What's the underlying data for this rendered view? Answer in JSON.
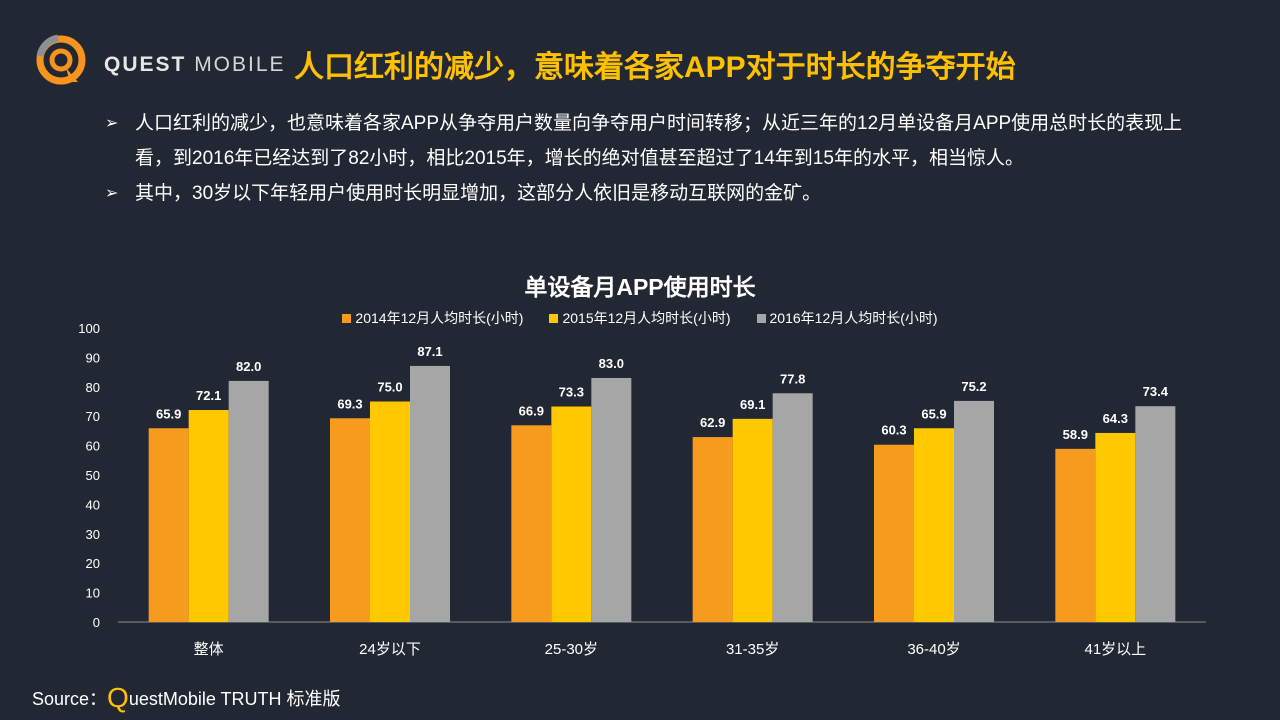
{
  "header": {
    "logo_brand": "QUEST",
    "logo_sub": "MOBILE",
    "title": "人口红利的减少，意味着各家APP对于时长的争夺开始"
  },
  "bullets": [
    {
      "icon": "arrow-bullet-icon",
      "text": "人口红利的减少，也意味着各家APP从争夺用户数量向争夺用户时间转移；从近三年的12月单设备月APP使用总时长的表现上看，到2016年已经达到了82小时，相比2015年，增长的绝对值甚至超过了14年到15年的水平，相当惊人。"
    },
    {
      "icon": "arrow-bullet-icon",
      "text": "其中，30岁以下年轻用户使用时长明显增加，这部分人依旧是移动互联网的金矿。"
    }
  ],
  "chart_data": {
    "type": "bar",
    "title": "单设备月APP使用时长",
    "categories": [
      "整体",
      "24岁以下",
      "25-30岁",
      "31-35岁",
      "36-40岁",
      "41岁以上"
    ],
    "series": [
      {
        "name": "2014年12月人均时长(小时)",
        "color": "#f79b1e",
        "values": [
          65.9,
          69.3,
          66.9,
          62.9,
          60.3,
          58.9
        ]
      },
      {
        "name": "2015年12月人均时长(小时)",
        "color": "#ffc800",
        "values": [
          72.1,
          75.0,
          73.3,
          69.1,
          65.9,
          64.3
        ]
      },
      {
        "name": "2016年12月人均时长(小时)",
        "color": "#a6a6a6",
        "values": [
          82.0,
          87.1,
          83.0,
          77.8,
          75.2,
          73.4
        ]
      }
    ],
    "ylim": [
      0,
      100
    ],
    "yticks": [
      0,
      10,
      20,
      30,
      40,
      50,
      60,
      70,
      80,
      90,
      100
    ],
    "legend": "top",
    "grid": false
  },
  "source": {
    "prefix": "Source：",
    "q": "Q",
    "rest": "uestMobile TRUTH 标准版"
  },
  "colors": {
    "background": "#222833",
    "accent": "#ffc000"
  }
}
